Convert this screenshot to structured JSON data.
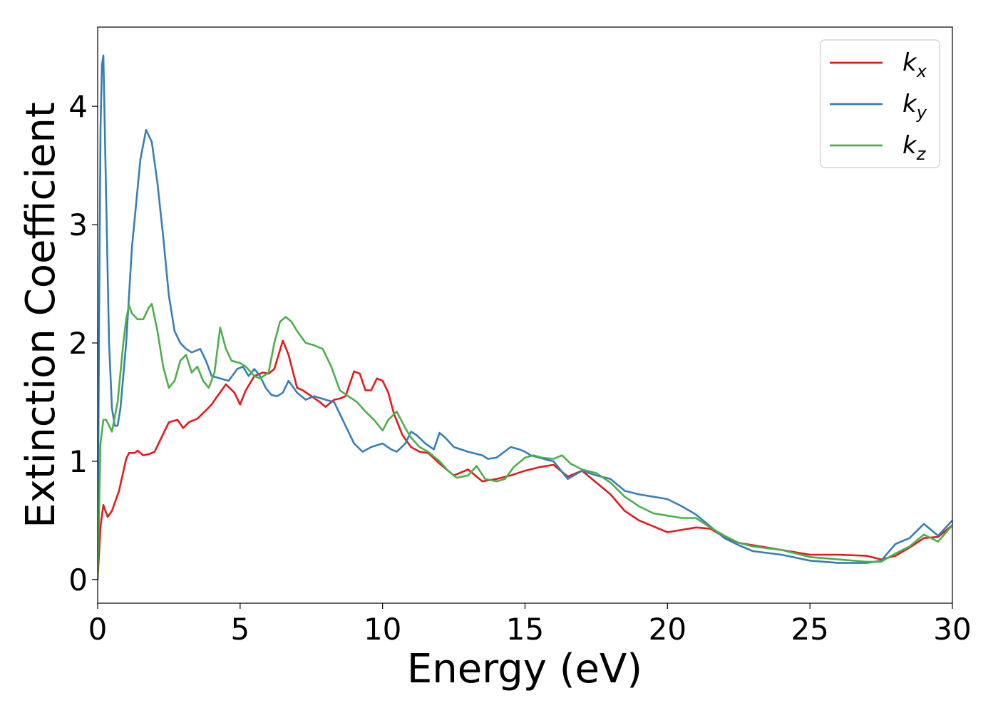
{
  "chart_data": {
    "type": "line",
    "title": "",
    "xlabel": "Energy (eV)",
    "ylabel": "Extinction Coefficient",
    "xlim": [
      0,
      30
    ],
    "ylim": [
      -0.2,
      4.67
    ],
    "xticks": [
      0,
      5,
      10,
      15,
      20,
      25,
      30
    ],
    "yticks": [
      0,
      1,
      2,
      3,
      4
    ],
    "grid": false,
    "legend_position": "top-right",
    "series": [
      {
        "name": "k_x",
        "label_base": "k",
        "label_sub": "x",
        "color": "#e31a1c",
        "x": [
          0,
          0.1,
          0.2,
          0.35,
          0.5,
          0.75,
          1.0,
          1.1,
          1.3,
          1.4,
          1.6,
          1.8,
          2.0,
          2.2,
          2.5,
          2.8,
          3.0,
          3.2,
          3.5,
          3.8,
          4.0,
          4.2,
          4.5,
          4.8,
          5.0,
          5.2,
          5.5,
          5.8,
          6.0,
          6.2,
          6.5,
          6.7,
          7.0,
          7.2,
          7.5,
          7.8,
          8.0,
          8.3,
          8.5,
          8.7,
          9.0,
          9.2,
          9.4,
          9.6,
          9.8,
          10.0,
          10.2,
          10.4,
          10.7,
          11.0,
          11.3,
          11.6,
          12.0,
          12.5,
          13.0,
          13.5,
          14.0,
          14.5,
          15.0,
          15.5,
          16.0,
          16.5,
          17.0,
          17.5,
          18.0,
          18.5,
          19.0,
          19.5,
          20.0,
          20.5,
          21.0,
          21.5,
          22.0,
          22.5,
          23.0,
          24.0,
          25.0,
          26.0,
          27.0,
          27.5,
          28.0,
          28.5,
          29.0,
          29.5,
          30.0
        ],
        "y": [
          0,
          0.45,
          0.63,
          0.53,
          0.58,
          0.75,
          1.02,
          1.07,
          1.07,
          1.09,
          1.05,
          1.06,
          1.08,
          1.18,
          1.33,
          1.35,
          1.28,
          1.33,
          1.36,
          1.43,
          1.48,
          1.55,
          1.65,
          1.58,
          1.48,
          1.6,
          1.72,
          1.75,
          1.74,
          1.78,
          2.02,
          1.9,
          1.62,
          1.6,
          1.55,
          1.5,
          1.46,
          1.52,
          1.53,
          1.55,
          1.76,
          1.74,
          1.6,
          1.6,
          1.7,
          1.68,
          1.58,
          1.4,
          1.22,
          1.12,
          1.08,
          1.07,
          0.98,
          0.88,
          0.93,
          0.83,
          0.85,
          0.88,
          0.92,
          0.95,
          0.97,
          0.87,
          0.92,
          0.82,
          0.72,
          0.58,
          0.5,
          0.45,
          0.4,
          0.42,
          0.44,
          0.43,
          0.36,
          0.31,
          0.29,
          0.25,
          0.21,
          0.21,
          0.2,
          0.17,
          0.2,
          0.27,
          0.35,
          0.36,
          0.46
        ]
      },
      {
        "name": "k_y",
        "label_base": "k",
        "label_sub": "y",
        "color": "#377eb8",
        "x": [
          0,
          0.05,
          0.1,
          0.15,
          0.2,
          0.3,
          0.4,
          0.5,
          0.6,
          0.7,
          0.8,
          1.0,
          1.2,
          1.5,
          1.7,
          1.9,
          2.1,
          2.3,
          2.5,
          2.7,
          2.9,
          3.1,
          3.3,
          3.6,
          3.8,
          4.0,
          4.3,
          4.6,
          4.9,
          5.1,
          5.3,
          5.5,
          5.7,
          5.9,
          6.1,
          6.3,
          6.5,
          6.7,
          7.0,
          7.3,
          7.6,
          8.0,
          8.3,
          8.5,
          8.8,
          9.0,
          9.3,
          9.6,
          10.0,
          10.3,
          10.5,
          10.8,
          11.0,
          11.2,
          11.5,
          11.8,
          12.0,
          12.2,
          12.5,
          13.0,
          13.5,
          13.7,
          14.0,
          14.5,
          14.8,
          15.0,
          15.2,
          15.5,
          15.8,
          16.0,
          16.5,
          17.0,
          17.5,
          18.0,
          18.5,
          19.0,
          19.5,
          20.0,
          20.5,
          21.0,
          21.5,
          22.0,
          22.5,
          23.0,
          24.0,
          25.0,
          26.0,
          27.0,
          27.5,
          28.0,
          28.5,
          29.0,
          29.5,
          30.0
        ],
        "y": [
          0.02,
          2.2,
          3.8,
          4.35,
          4.43,
          3.2,
          2.0,
          1.45,
          1.3,
          1.3,
          1.45,
          2.0,
          2.8,
          3.55,
          3.8,
          3.7,
          3.35,
          2.9,
          2.4,
          2.1,
          2.0,
          1.95,
          1.92,
          1.95,
          1.85,
          1.72,
          1.7,
          1.68,
          1.78,
          1.8,
          1.72,
          1.78,
          1.72,
          1.62,
          1.56,
          1.55,
          1.58,
          1.68,
          1.58,
          1.52,
          1.55,
          1.52,
          1.5,
          1.4,
          1.25,
          1.15,
          1.08,
          1.12,
          1.15,
          1.1,
          1.08,
          1.15,
          1.25,
          1.22,
          1.15,
          1.1,
          1.24,
          1.2,
          1.12,
          1.08,
          1.05,
          1.02,
          1.03,
          1.12,
          1.1,
          1.08,
          1.05,
          1.03,
          1.01,
          1.0,
          0.85,
          0.92,
          0.88,
          0.85,
          0.75,
          0.72,
          0.7,
          0.68,
          0.62,
          0.55,
          0.45,
          0.35,
          0.29,
          0.24,
          0.21,
          0.16,
          0.14,
          0.14,
          0.16,
          0.3,
          0.35,
          0.47,
          0.37,
          0.5
        ]
      },
      {
        "name": "k_z",
        "label_base": "k",
        "label_sub": "z",
        "color": "#4daf4a",
        "x": [
          0,
          0.1,
          0.2,
          0.3,
          0.5,
          0.7,
          0.9,
          1.0,
          1.1,
          1.2,
          1.4,
          1.6,
          1.8,
          1.9,
          2.1,
          2.3,
          2.5,
          2.7,
          2.9,
          3.1,
          3.3,
          3.5,
          3.7,
          3.9,
          4.1,
          4.3,
          4.5,
          4.7,
          5.0,
          5.2,
          5.5,
          5.7,
          6.0,
          6.2,
          6.4,
          6.6,
          6.8,
          7.0,
          7.3,
          7.6,
          7.9,
          8.2,
          8.5,
          8.8,
          9.1,
          9.4,
          9.7,
          10.0,
          10.2,
          10.5,
          10.8,
          11.0,
          11.3,
          11.6,
          12.0,
          12.3,
          12.6,
          13.0,
          13.3,
          13.6,
          14.0,
          14.3,
          14.6,
          15.0,
          15.3,
          15.6,
          16.0,
          16.3,
          16.6,
          17.0,
          17.5,
          18.0,
          18.5,
          19.0,
          19.5,
          20.0,
          20.5,
          21.0,
          21.5,
          22.0,
          22.5,
          23.0,
          24.0,
          25.0,
          26.0,
          27.0,
          27.5,
          28.0,
          28.5,
          29.0,
          29.5,
          30.0
        ],
        "y": [
          0,
          1.15,
          1.35,
          1.35,
          1.25,
          1.5,
          2.0,
          2.2,
          2.32,
          2.25,
          2.2,
          2.2,
          2.3,
          2.33,
          2.1,
          1.8,
          1.62,
          1.68,
          1.85,
          1.9,
          1.75,
          1.8,
          1.68,
          1.62,
          1.75,
          2.13,
          1.95,
          1.85,
          1.83,
          1.8,
          1.72,
          1.7,
          1.75,
          2.0,
          2.18,
          2.22,
          2.18,
          2.1,
          2.0,
          1.98,
          1.95,
          1.8,
          1.6,
          1.55,
          1.5,
          1.42,
          1.35,
          1.26,
          1.35,
          1.42,
          1.28,
          1.2,
          1.12,
          1.08,
          1.0,
          0.92,
          0.86,
          0.88,
          0.96,
          0.85,
          0.83,
          0.85,
          0.95,
          1.03,
          1.05,
          1.03,
          1.02,
          1.05,
          0.98,
          0.93,
          0.9,
          0.82,
          0.7,
          0.62,
          0.56,
          0.54,
          0.52,
          0.52,
          0.44,
          0.37,
          0.31,
          0.28,
          0.25,
          0.19,
          0.17,
          0.15,
          0.15,
          0.22,
          0.28,
          0.38,
          0.32,
          0.46
        ]
      }
    ]
  }
}
